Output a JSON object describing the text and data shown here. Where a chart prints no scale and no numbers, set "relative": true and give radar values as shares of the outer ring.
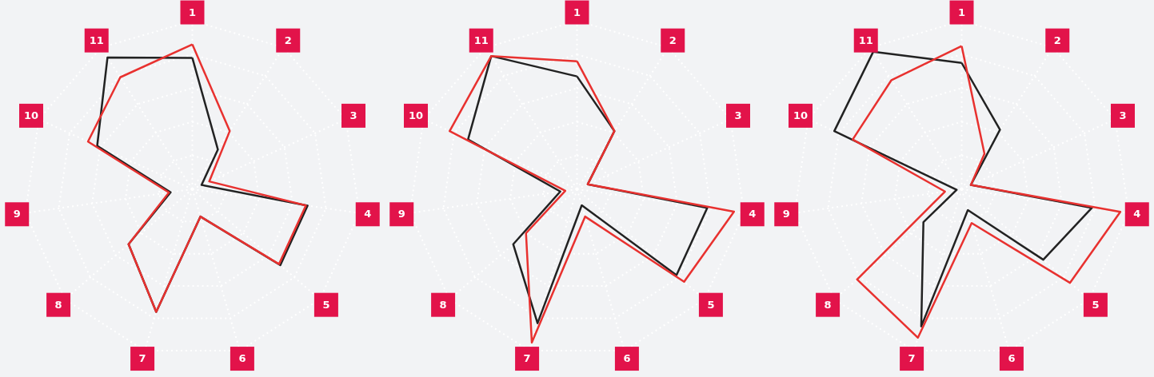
{
  "chart_data": [
    {
      "type": "radar",
      "relative": true,
      "grid": true,
      "categories": [
        "1",
        "2",
        "3",
        "4",
        "5",
        "6",
        "7",
        "8",
        "9",
        "10",
        "11"
      ],
      "series": [
        {
          "color": "#222222",
          "values": [
            0.78,
            0.28,
            0.06,
            0.69,
            0.69,
            0.17,
            0.76,
            0.5,
            0.13,
            0.62,
            0.93
          ]
        },
        {
          "color": "#e8312f",
          "values": [
            0.86,
            0.41,
            0.11,
            0.68,
            0.68,
            0.17,
            0.76,
            0.5,
            0.14,
            0.68,
            0.79
          ]
        }
      ]
    },
    {
      "type": "radar",
      "relative": true,
      "grid": true,
      "categories": [
        "1",
        "2",
        "3",
        "4",
        "5",
        "6",
        "7",
        "8",
        "9",
        "10",
        "11"
      ],
      "series": [
        {
          "color": "#222222",
          "values": [
            0.67,
            0.41,
            0.07,
            0.78,
            0.78,
            0.1,
            0.83,
            0.5,
            0.1,
            0.71,
            0.94
          ]
        },
        {
          "color": "#e8312f",
          "values": [
            0.76,
            0.41,
            0.07,
            0.94,
            0.84,
            0.17,
            0.95,
            0.4,
            0.07,
            0.83,
            0.94
          ]
        }
      ]
    },
    {
      "type": "radar",
      "relative": true,
      "grid": true,
      "categories": [
        "1",
        "2",
        "3",
        "4",
        "5",
        "6",
        "7",
        "8",
        "9",
        "10",
        "11"
      ],
      "series": [
        {
          "color": "#222222",
          "values": [
            0.75,
            0.42,
            0.06,
            0.78,
            0.64,
            0.13,
            0.85,
            0.3,
            0.03,
            0.83,
            0.97
          ]
        },
        {
          "color": "#e8312f",
          "values": [
            0.85,
            0.25,
            0.06,
            0.95,
            0.85,
            0.21,
            0.92,
            0.82,
            0.1,
            0.71,
            0.77
          ]
        }
      ]
    }
  ]
}
